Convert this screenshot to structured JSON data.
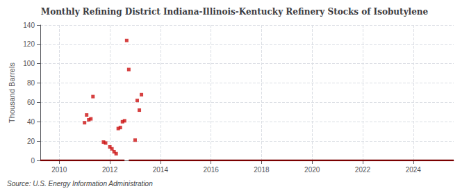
{
  "chart_data": {
    "type": "scatter",
    "title": "Monthly Refining District Indiana-Illinois-Kentucky Refinery Stocks of Isobutylene",
    "ylabel": "Thousand Barrels",
    "annotation": "Source: U.S. Energy Information Administration",
    "xlim": [
      2009.25,
      2025.6
    ],
    "ylim": [
      0,
      140
    ],
    "xticks": [
      2010,
      2012,
      2014,
      2016,
      2018,
      2020,
      2022,
      2024
    ],
    "yticks": [
      0,
      20,
      40,
      60,
      80,
      100,
      120,
      140
    ],
    "grid": true,
    "series": [
      {
        "type": "line",
        "color": "#7a0000",
        "line_style": "solid",
        "x": [
          2009.25,
          2012.58
        ],
        "values": [
          0,
          0
        ]
      },
      {
        "type": "line",
        "color": "#7a0000",
        "line_style": "solid",
        "x": [
          2012.75,
          2025.6
        ],
        "values": [
          0,
          0
        ]
      },
      {
        "type": "scatter",
        "color": "#cc1111",
        "marker": "square",
        "x": [
          2011.0,
          2011.083,
          2011.167,
          2011.25,
          2011.333,
          2011.75,
          2011.833,
          2012.0,
          2012.083,
          2012.167,
          2012.25,
          2012.333,
          2012.417,
          2012.5,
          2012.583,
          2012.667,
          2012.75,
          2013.0,
          2013.083,
          2013.167,
          2013.25
        ],
        "values": [
          39,
          47,
          42,
          43,
          66,
          19,
          18,
          14,
          12,
          9,
          7,
          33,
          34,
          40,
          41,
          124,
          94,
          21,
          62,
          52,
          68
        ]
      }
    ]
  }
}
